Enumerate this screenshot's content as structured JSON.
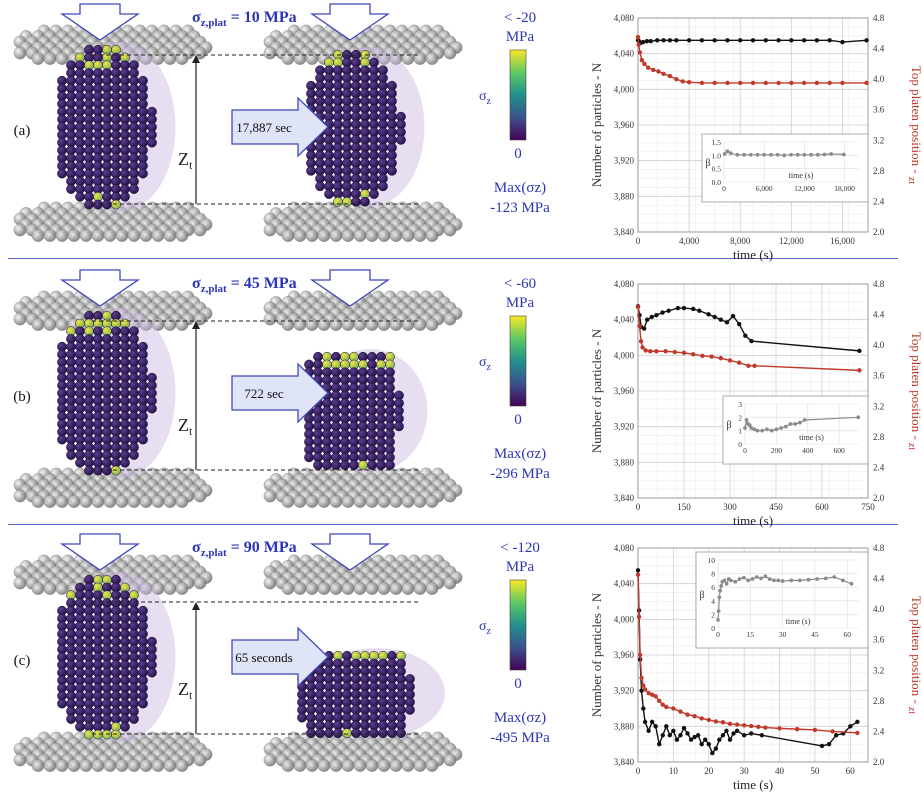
{
  "rows": [
    {
      "label": "(a)",
      "stress_main": "σ",
      "stress_sub": "z,plat",
      "stress_value": " = 10 MPa",
      "duration": "17,887 sec",
      "cbar_top": "< -20",
      "cbar_unit": "MPa",
      "cbar_bottom": "0",
      "cbar_label": "σz",
      "zt": "Zt",
      "max_label": "Max(σz)",
      "max_value": "-123 MPa",
      "chart_data": {
        "type": "line",
        "xlabel": "time (s)",
        "ylabel": "Number of particles - N",
        "y2label": "Top platen position - zt",
        "xlim": [
          0,
          18000
        ],
        "xticks": [
          0,
          4000,
          8000,
          12000,
          16000
        ],
        "xticklabels": [
          "0",
          "4,000",
          "8,000",
          "12,000",
          "16,000"
        ],
        "ylim": [
          3840,
          4080
        ],
        "yticks": [
          3840,
          3880,
          3920,
          3960,
          4000,
          4040,
          4080
        ],
        "yticklabels": [
          "3,840",
          "3,880",
          "3,920",
          "3,960",
          "4,000",
          "4,040",
          "4,080"
        ],
        "y2lim": [
          2.0,
          4.8
        ],
        "y2ticks": [
          2.0,
          2.4,
          2.8,
          3.2,
          3.6,
          4.0,
          4.4,
          4.8
        ],
        "y2ticklabels": [
          "2.0",
          "2.4",
          "2.8",
          "3.2",
          "3.6",
          "4.0",
          "4.4",
          "4.8"
        ],
        "grid": true,
        "series": [
          {
            "axis": "left",
            "color": "#111111",
            "x": [
              0,
              80,
              200,
              400,
              700,
              1000,
              1500,
              2000,
              2500,
              3000,
              4000,
              5000,
              6000,
              7000,
              8000,
              9000,
              10000,
              11000,
              12000,
              13000,
              14000,
              15000,
              16000,
              17887
            ],
            "y": [
              4055,
              4054,
              4052,
              4053,
              4054,
              4054,
              4055,
              4055,
              4055,
              4055,
              4055,
              4055,
              4055,
              4055,
              4055,
              4055,
              4055,
              4055,
              4055,
              4055,
              4055,
              4055,
              4053,
              4055
            ]
          },
          {
            "axis": "right",
            "color": "#c0392b",
            "x": [
              0,
              50,
              150,
              300,
              500,
              800,
              1200,
              1600,
              2000,
              2500,
              3000,
              3500,
              4000,
              5000,
              6000,
              7000,
              8000,
              9000,
              10000,
              11000,
              12000,
              13000,
              14000,
              15000,
              16000,
              17887
            ],
            "y": [
              4.55,
              4.45,
              4.35,
              4.25,
              4.2,
              4.15,
              4.12,
              4.1,
              4.07,
              4.04,
              4.0,
              3.97,
              3.96,
              3.95,
              3.95,
              3.95,
              3.95,
              3.95,
              3.95,
              3.95,
              3.95,
              3.95,
              3.95,
              3.95,
              3.95,
              3.95
            ]
          }
        ],
        "inset": {
          "ylabel": "β",
          "xlabel": "time (s)",
          "xlim": [
            0,
            20000
          ],
          "xticks": [
            0,
            6000,
            12000,
            18000
          ],
          "xticklabels": [
            "0",
            "6,000",
            "12,000",
            "18,000"
          ],
          "ylim": [
            0,
            1.5
          ],
          "yticks": [
            0,
            0.5,
            1.0,
            1.5
          ],
          "yticklabels": [
            "0.0",
            "0.5",
            "1.0",
            "1.5"
          ],
          "x": [
            100,
            500,
            1000,
            2000,
            3000,
            4000,
            5000,
            6000,
            7000,
            8000,
            9000,
            10000,
            11000,
            12000,
            13000,
            14000,
            15000,
            16000,
            17887
          ],
          "y": [
            1.05,
            1.15,
            1.08,
            1.02,
            1.02,
            1.02,
            1.02,
            1.02,
            1.02,
            1.02,
            1.0,
            1.02,
            1.02,
            1.02,
            1.02,
            1.02,
            1.03,
            1.05,
            1.03
          ]
        }
      }
    },
    {
      "label": "(b)",
      "stress_main": "σ",
      "stress_sub": "z,plat",
      "stress_value": " = 45 MPa",
      "duration": "722 sec",
      "cbar_top": "< -60",
      "cbar_unit": "MPa",
      "cbar_bottom": "0",
      "cbar_label": "σz",
      "zt": "Zt",
      "max_label": "Max(σz)",
      "max_value": "-296 MPa",
      "chart_data": {
        "type": "line",
        "xlabel": "time (s)",
        "ylabel": "Number of particles - N",
        "y2label": "Top platen position - zt",
        "xlim": [
          0,
          750
        ],
        "xticks": [
          0,
          150,
          300,
          450,
          600,
          750
        ],
        "xticklabels": [
          "0",
          "150",
          "300",
          "450",
          "600",
          "750"
        ],
        "ylim": [
          3840,
          4080
        ],
        "yticks": [
          3840,
          3880,
          3920,
          3960,
          4000,
          4040,
          4080
        ],
        "yticklabels": [
          "3,840",
          "3,880",
          "3,920",
          "3,960",
          "4,000",
          "4,040",
          "4,080"
        ],
        "y2lim": [
          2.0,
          4.8
        ],
        "y2ticks": [
          2.0,
          2.4,
          2.8,
          3.2,
          3.6,
          4.0,
          4.4,
          4.8
        ],
        "y2ticklabels": [
          "2.0",
          "2.4",
          "2.8",
          "3.2",
          "3.6",
          "4.0",
          "4.4",
          "4.8"
        ],
        "grid": true,
        "series": [
          {
            "axis": "left",
            "color": "#111111",
            "x": [
              0,
              5,
              10,
              20,
              30,
              45,
              60,
              80,
              100,
              130,
              150,
              180,
              200,
              230,
              250,
              270,
              290,
              310,
              330,
              350,
              370,
              722
            ],
            "y": [
              4055,
              4045,
              4032,
              4030,
              4040,
              4043,
              4045,
              4048,
              4050,
              4053,
              4053,
              4052,
              4050,
              4046,
              4043,
              4040,
              4037,
              4044,
              4035,
              4022,
              4016,
              4005
            ]
          },
          {
            "axis": "right",
            "color": "#c0392b",
            "x": [
              0,
              5,
              10,
              15,
              25,
              40,
              60,
              90,
              120,
              150,
              180,
              210,
              240,
              270,
              300,
              330,
              360,
              380,
              722
            ],
            "y": [
              4.5,
              4.25,
              4.05,
              3.97,
              3.93,
              3.92,
              3.92,
              3.92,
              3.91,
              3.9,
              3.88,
              3.86,
              3.85,
              3.83,
              3.8,
              3.77,
              3.73,
              3.73,
              3.67
            ]
          }
        ],
        "inset": {
          "ylabel": "β",
          "xlabel": "time (s)",
          "xlim": [
            0,
            720
          ],
          "xticks": [
            0,
            200,
            400,
            600
          ],
          "xticklabels": [
            "0",
            "200",
            "400",
            "600"
          ],
          "ylim": [
            0,
            3
          ],
          "yticks": [
            0,
            1,
            2,
            3
          ],
          "yticklabels": [
            "0",
            "1",
            "2",
            "3"
          ],
          "x": [
            0,
            10,
            20,
            30,
            40,
            60,
            80,
            110,
            140,
            170,
            200,
            230,
            260,
            290,
            320,
            350,
            380,
            722
          ],
          "y": [
            1.2,
            1.8,
            1.5,
            1.4,
            1.2,
            1.1,
            1.0,
            1.0,
            1.1,
            1.0,
            1.1,
            1.2,
            1.3,
            1.5,
            1.5,
            1.6,
            1.8,
            2.0
          ]
        }
      }
    },
    {
      "label": "(c)",
      "stress_main": "σ",
      "stress_sub": "z,plat",
      "stress_value": " = 90 MPa",
      "duration": "65 seconds",
      "cbar_top": "< -120",
      "cbar_unit": "MPa",
      "cbar_bottom": "0",
      "cbar_label": "σz",
      "zt": "Zt",
      "max_label": "Max(σz)",
      "max_value": "-495 MPa",
      "chart_data": {
        "type": "line",
        "xlabel": "time (s)",
        "ylabel": "Number of particles - N",
        "y2label": "Top platen position - zt",
        "xlim": [
          0,
          65
        ],
        "xticks": [
          0,
          10,
          20,
          30,
          40,
          50,
          60
        ],
        "xticklabels": [
          "0",
          "10",
          "20",
          "30",
          "40",
          "50",
          "60"
        ],
        "ylim": [
          3840,
          4080
        ],
        "yticks": [
          3840,
          3880,
          3920,
          3960,
          4000,
          4040,
          4080
        ],
        "yticklabels": [
          "3,840",
          "3,880",
          "3,920",
          "3,960",
          "4,000",
          "4,040",
          "4,080"
        ],
        "y2lim": [
          2.0,
          4.8
        ],
        "y2ticks": [
          2.0,
          2.4,
          2.8,
          3.2,
          3.6,
          4.0,
          4.4,
          4.8
        ],
        "y2ticklabels": [
          "2.0",
          "2.4",
          "2.8",
          "3.2",
          "3.6",
          "4.0",
          "4.4",
          "4.8"
        ],
        "grid": true,
        "series": [
          {
            "axis": "left",
            "color": "#111111",
            "x": [
              0,
              0.3,
              0.6,
              1,
              1.5,
              2,
              3,
              4,
              5,
              6,
              7,
              8,
              9,
              10,
              11,
              12,
              13,
              14,
              15,
              16,
              17,
              18,
              19,
              20,
              21,
              22,
              23,
              24,
              25,
              26,
              27,
              28,
              30,
              32,
              35,
              52,
              54,
              56,
              58,
              60,
              62
            ],
            "y": [
              4055,
              4010,
              3955,
              3920,
              3900,
              3885,
              3875,
              3885,
              3880,
              3860,
              3870,
              3880,
              3870,
              3875,
              3865,
              3870,
              3878,
              3872,
              3865,
              3868,
              3870,
              3860,
              3865,
              3860,
              3850,
              3855,
              3865,
              3870,
              3875,
              3865,
              3872,
              3875,
              3870,
              3872,
              3870,
              3858,
              3860,
              3870,
              3872,
              3880,
              3885
            ]
          },
          {
            "axis": "right",
            "color": "#c0392b",
            "x": [
              0,
              0.3,
              0.6,
              1,
              1.5,
              2,
              3,
              4,
              5,
              6,
              7,
              8,
              10,
              12,
              14,
              16,
              18,
              20,
              22,
              24,
              26,
              28,
              30,
              32,
              34,
              36,
              40,
              45,
              50,
              55,
              62
            ],
            "y": [
              4.45,
              3.9,
              3.4,
              3.1,
              3.0,
              2.95,
              2.9,
              2.88,
              2.86,
              2.8,
              2.75,
              2.72,
              2.7,
              2.66,
              2.62,
              2.6,
              2.57,
              2.55,
              2.53,
              2.52,
              2.5,
              2.49,
              2.48,
              2.47,
              2.46,
              2.45,
              2.44,
              2.43,
              2.42,
              2.4,
              2.38
            ]
          }
        ],
        "inset": {
          "ylabel": "β",
          "xlabel": "time (s)",
          "xlim": [
            0,
            65
          ],
          "xticks": [
            0,
            15,
            30,
            45,
            60
          ],
          "xticklabels": [
            "0",
            "15",
            "30",
            "45",
            "60"
          ],
          "ylim": [
            0,
            10
          ],
          "yticks": [
            0,
            2,
            4,
            6,
            8,
            10
          ],
          "yticklabels": [
            "0",
            "2",
            "4",
            "6",
            "8",
            "10"
          ],
          "x": [
            0,
            0.3,
            0.6,
            1,
            1.5,
            2,
            3,
            4,
            5,
            6,
            8,
            10,
            12,
            14,
            16,
            18,
            20,
            22,
            24,
            26,
            28,
            30,
            34,
            38,
            42,
            46,
            50,
            54,
            58,
            62
          ],
          "y": [
            1.2,
            2.5,
            4.5,
            5.5,
            6.2,
            6.8,
            7.0,
            6.5,
            7.2,
            7.0,
            6.8,
            7.2,
            7.4,
            7.0,
            7.2,
            7.5,
            7.3,
            7.6,
            7.2,
            7.0,
            7.0,
            6.9,
            7.0,
            7.0,
            7.1,
            7.2,
            7.3,
            7.5,
            7.0,
            6.5
          ]
        }
      }
    }
  ]
}
